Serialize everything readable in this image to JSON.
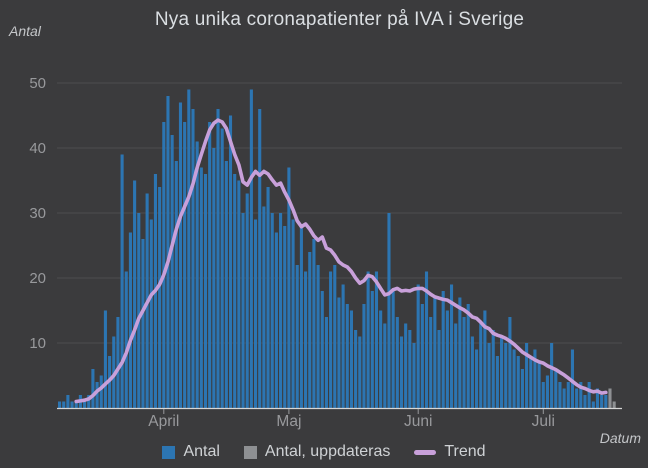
{
  "chart_data": {
    "type": "bar",
    "title": "Nya unika coronapatienter på IVA i Sverige",
    "xlabel": "Datum",
    "ylabel": "Antal",
    "ylim": [
      0,
      52
    ],
    "grid": "horizontal",
    "legend_position": "bottom",
    "y_ticks": [
      10,
      20,
      30,
      40,
      50
    ],
    "x_unit": "day",
    "x_months": [
      {
        "label": "April",
        "index": 25
      },
      {
        "label": "Maj",
        "index": 55
      },
      {
        "label": "Juni",
        "index": 86
      },
      {
        "label": "Juli",
        "index": 116
      }
    ],
    "colors": {
      "background": "#3b3b3d",
      "grid": "#4c4c4e",
      "axis_line": "#d6d6d6",
      "tick_text": "#98999c",
      "title_text": "#dadee2",
      "axis_label_text": "#c4c6c9",
      "legend_text": "#cfd2d5"
    },
    "series": [
      {
        "name": "Antal",
        "type": "bar",
        "color": "#2c75b2",
        "start_index": 0,
        "values": [
          1,
          1,
          2,
          1,
          1,
          2,
          1,
          2,
          6,
          4,
          5,
          15,
          8,
          11,
          14,
          39,
          21,
          27,
          35,
          30,
          26,
          33,
          29,
          36,
          34,
          44,
          48,
          42,
          38,
          47,
          44,
          49,
          46,
          41,
          37,
          36,
          44,
          40,
          46,
          43,
          38,
          45,
          36,
          35,
          30,
          33,
          49,
          29,
          46,
          31,
          34,
          30,
          27,
          30,
          28,
          37,
          29,
          22,
          28,
          21,
          24,
          26,
          22,
          18,
          14,
          21,
          22,
          17,
          19,
          16,
          15,
          12,
          11,
          16,
          21,
          18,
          21,
          15,
          13,
          30,
          18,
          14,
          11,
          13,
          12,
          10,
          19,
          16,
          21,
          14,
          17,
          12,
          18,
          15,
          19,
          13,
          17,
          14,
          16,
          11,
          9,
          13,
          15,
          10,
          12,
          8,
          11,
          10,
          14,
          9,
          8,
          6,
          10,
          8,
          9,
          7,
          4,
          5,
          10,
          6,
          4,
          3,
          4,
          9,
          3,
          4,
          2,
          4,
          1,
          3,
          2,
          2
        ]
      },
      {
        "name": "Antal, uppdateras",
        "type": "bar",
        "color": "#8e9093",
        "start_index": 132,
        "values": [
          3,
          1
        ]
      },
      {
        "name": "Trend",
        "type": "line",
        "color": "#c8a0da",
        "start_index": 4,
        "values": [
          1.0,
          1.1,
          1.2,
          1.4,
          1.9,
          2.6,
          3.1,
          3.7,
          4.3,
          5.0,
          6.0,
          7.0,
          8.5,
          10.4,
          12.0,
          13.8,
          15.0,
          16.2,
          17.4,
          18.1,
          19.0,
          20.5,
          22.5,
          25.0,
          27.5,
          29.5,
          31.0,
          32.5,
          34.5,
          37.0,
          39.0,
          41.0,
          42.8,
          43.8,
          44.3,
          44.0,
          43.0,
          41.0,
          39.0,
          37.4,
          34.8,
          34.3,
          35.5,
          36.4,
          35.8,
          36.4,
          36.0,
          35.1,
          34.3,
          34.6,
          33.2,
          32.0,
          30.5,
          28.8,
          27.9,
          28.3,
          27.5,
          26.5,
          25.8,
          26.3,
          24.6,
          24.3,
          23.5,
          22.5,
          22.0,
          21.7,
          21.0,
          20.0,
          19.2,
          19.6,
          20.4,
          20.2,
          19.4,
          18.4,
          17.4,
          17.6,
          18.2,
          18.4,
          18.0,
          18.1,
          18.0,
          18.3,
          18.4,
          18.4,
          18.0,
          17.5,
          17.1,
          16.9,
          16.7,
          16.6,
          16.2,
          15.8,
          15.4,
          15.1,
          14.6,
          14.0,
          13.8,
          13.2,
          12.5,
          12.2,
          11.5,
          11.2,
          11.0,
          10.7,
          10.3,
          9.8,
          9.2,
          8.6,
          8.2,
          7.8,
          7.4,
          7.1,
          6.9,
          6.5,
          6.2,
          5.9,
          5.5,
          5.1,
          4.6,
          4.1,
          3.6,
          3.2,
          3.0,
          2.7,
          2.5,
          2.6,
          2.3,
          2.4
        ]
      }
    ]
  }
}
